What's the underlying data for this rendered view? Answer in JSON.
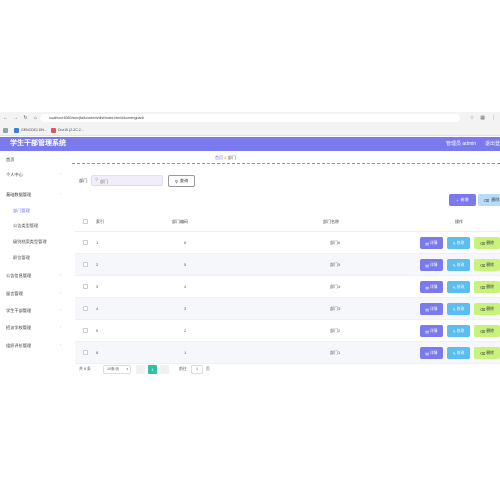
{
  "browser": {
    "url": "localhost:8080/ssmj6z8z/admin/dist/index.html#/bumenguanli",
    "bookmarks": [
      {
        "label": "",
        "color": "#8aa"
      },
      {
        "label": "GENCDE1 DN...",
        "color": "#3b7ddd"
      },
      {
        "label": "Cnz15 (2-2C.2...",
        "color": "#d55"
      }
    ]
  },
  "header": {
    "title": "学生干部管理系统",
    "admin": "管理员 admin",
    "logout": "退出登录"
  },
  "sidebar": {
    "items": [
      {
        "label": "首页",
        "sub": false,
        "chev": false
      },
      {
        "label": "个人中心",
        "sub": false,
        "chev": true
      },
      {
        "label": "基础数据管理",
        "sub": false,
        "chev": true
      },
      {
        "label": "部门管理",
        "sub": true,
        "chev": false,
        "active": true
      },
      {
        "label": "公告类型管理",
        "sub": true,
        "chev": false
      },
      {
        "label": "级别档案类型管理",
        "sub": true,
        "chev": false
      },
      {
        "label": "职位管理",
        "sub": true,
        "chev": false
      },
      {
        "label": "公告信息管理",
        "sub": false,
        "chev": true
      },
      {
        "label": "留言管理",
        "sub": false,
        "chev": true
      },
      {
        "label": "学生干部管理",
        "sub": false,
        "chev": true
      },
      {
        "label": "招访学校管理",
        "sub": false,
        "chev": true
      },
      {
        "label": "组织评价管理",
        "sub": false,
        "chev": true
      }
    ]
  },
  "breadcrumb": {
    "home": "首页",
    "separator": "&",
    "current": "部门"
  },
  "search": {
    "label": "部门",
    "placeholder": "部门",
    "query_label": "查询"
  },
  "toolbar": {
    "add_label": "新增",
    "delete_label": "删除"
  },
  "table": {
    "columns": [
      "索引",
      "部门编码",
      "部门名称",
      "操作"
    ],
    "rows": [
      {
        "index": "1",
        "code": "6",
        "name": "部门6"
      },
      {
        "index": "2",
        "code": "5",
        "name": "部门5"
      },
      {
        "index": "3",
        "code": "4",
        "name": "部门4"
      },
      {
        "index": "4",
        "code": "3",
        "name": "部门3"
      },
      {
        "index": "5",
        "code": "2",
        "name": "部门2"
      },
      {
        "index": "6",
        "code": "1",
        "name": "部门1"
      }
    ],
    "actions": {
      "detail": "详情",
      "edit": "修改",
      "remove": "删除"
    }
  },
  "pagination": {
    "total": "共 6 条",
    "page_size": "10条/页",
    "current_page": "1",
    "goto_label": "前往",
    "goto_value": "1",
    "goto_unit": "页"
  },
  "colors": {
    "accent": "#7b79ee",
    "edit": "#5bbdf0",
    "remove": "#c9f27a",
    "pager_active": "#2ec2a0"
  }
}
